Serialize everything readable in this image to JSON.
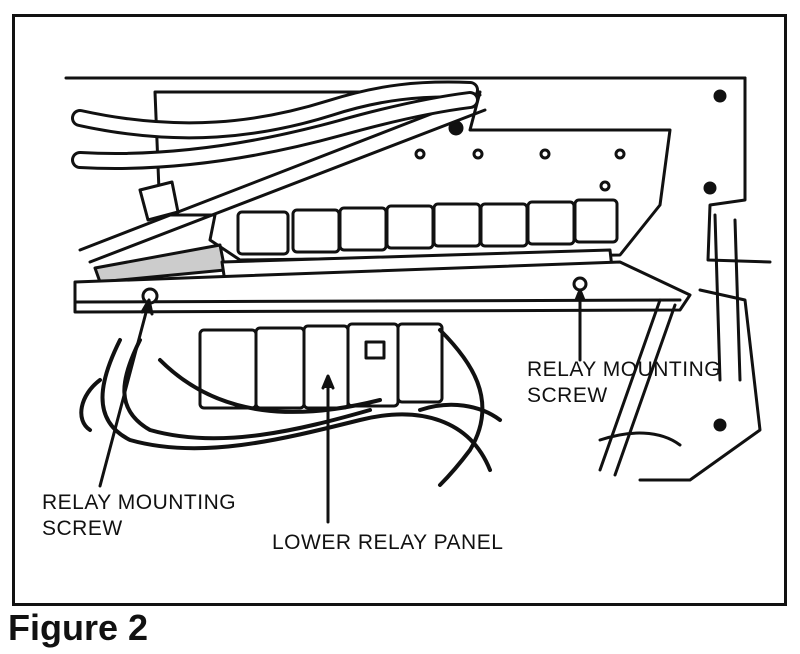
{
  "callouts": {
    "relay_screw_right": "RELAY MOUNTING\nSCREW",
    "relay_screw_left": "RELAY MOUNTING\nSCREW",
    "lower_panel": "LOWER RELAY PANEL"
  },
  "caption": "Figure 2",
  "colors": {
    "ink": "#111111",
    "paper": "#ffffff",
    "shade": "#d8d8d8"
  }
}
